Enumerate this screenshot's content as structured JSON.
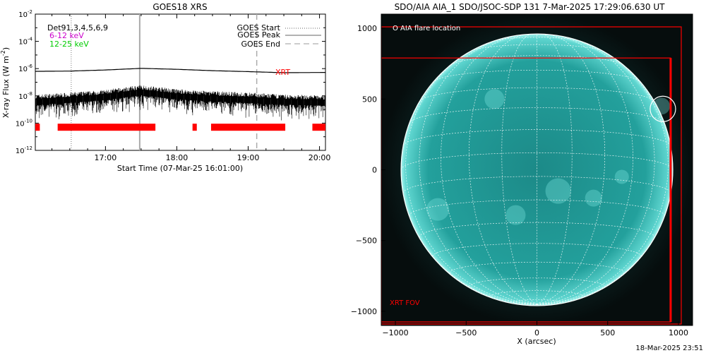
{
  "chart_data": [
    {
      "type": "line",
      "title": "GOES18 XRS",
      "xlabel": "Start Time (07-Mar-25 16:01:00)",
      "ylabel": "X-ray Flux (W m",
      "ylabel_sup": "-2",
      "ylabel_close": ")",
      "xlim": [
        "16:01",
        "20:05"
      ],
      "ylim_log10": [
        -12,
        -2
      ],
      "y_scale": "log",
      "x_ticks": [
        {
          "label": "17:00",
          "hours": 17.0
        },
        {
          "label": "18:00",
          "hours": 18.0
        },
        {
          "label": "19:00",
          "hours": 19.0
        },
        {
          "label": "20:00",
          "hours": 20.0
        }
      ],
      "y_ticks": [
        {
          "exp": -2,
          "base": "10",
          "sup": "-2"
        },
        {
          "exp": -4,
          "base": "10",
          "sup": "-4"
        },
        {
          "exp": -6,
          "base": "10",
          "sup": "-6"
        },
        {
          "exp": -8,
          "base": "10",
          "sup": "-8"
        },
        {
          "exp": -10,
          "base": "10",
          "sup": "-10"
        },
        {
          "exp": -12,
          "base": "10",
          "sup": "-12"
        }
      ],
      "legend_left": {
        "dets_label": "Det91,3,4,5,6,9",
        "low_label": "6-12 keV",
        "high_label": "12-25 keV",
        "low_color": "#cc00cc",
        "high_color": "#00cc00"
      },
      "legend_right": [
        {
          "label": "GOES Start",
          "style": "dotted"
        },
        {
          "label": "GOES Peak",
          "style": "solid"
        },
        {
          "label": "GOES End",
          "style": "dashed"
        }
      ],
      "markers": {
        "goes_start": 16.52,
        "goes_peak": 17.48,
        "goes_end": 19.12
      },
      "series": [
        {
          "name": "",
          "color": "#000000",
          "x": [
            16.02,
            16.5,
            17.0,
            17.5,
            18.0,
            18.5,
            19.0,
            19.5,
            20.08
          ],
          "log10_flux": [
            -6.2,
            -6.18,
            -6.1,
            -5.98,
            -6.05,
            -6.15,
            -6.22,
            -6.3,
            -6.28
          ]
        },
        {
          "name": "",
          "color": "#000000",
          "x": [
            16.02,
            16.5,
            17.0,
            17.5,
            18.0,
            18.5,
            19.0,
            19.5,
            20.08
          ],
          "log10_flux": [
            -8.25,
            -8.1,
            -7.9,
            -7.55,
            -7.85,
            -8.0,
            -8.1,
            -8.25,
            -8.3
          ]
        }
      ],
      "xrt_label": "XRT",
      "xrt_color": "#ff0000",
      "xrt_log10_flux": -10.3,
      "xrt_intervals": [
        [
          16.0,
          16.08
        ],
        [
          16.33,
          17.7
        ],
        [
          18.22,
          18.28
        ],
        [
          18.48,
          19.52
        ],
        [
          19.9,
          20.1
        ]
      ]
    },
    {
      "type": "image",
      "title": "SDO/AIA AIA_1 SDO/JSOC-SDP 131  7-Mar-2025 17:29:06.630 UT",
      "xlabel": "X (arcsec)",
      "xlim": [
        -1100,
        1100
      ],
      "ylim": [
        -1100,
        1100
      ],
      "x_ticks": [
        -1000,
        -500,
        0,
        500,
        1000
      ],
      "y_ticks": [
        1000,
        500,
        0,
        -500,
        -1000
      ],
      "solar_radius_arcsec": 960,
      "disk_color": "#27a3a0",
      "grid_color": "#ffffff",
      "aia_flare_label": "O AIA flare location",
      "flare_location": {
        "x": 890,
        "y": 430,
        "r": 90
      },
      "xrt_fov_label": "XRT FOV",
      "xrt_fov_color": "#ff0000",
      "xrt_fov_boxes": [
        {
          "x0": -1100,
          "y0": -1090,
          "x1": 1020,
          "y1": 1010
        },
        {
          "x0": -1100,
          "y0": -1075,
          "x1": 945,
          "y1": 790
        }
      ]
    }
  ],
  "footer_timestamp": "18-Mar-2025 23:51"
}
